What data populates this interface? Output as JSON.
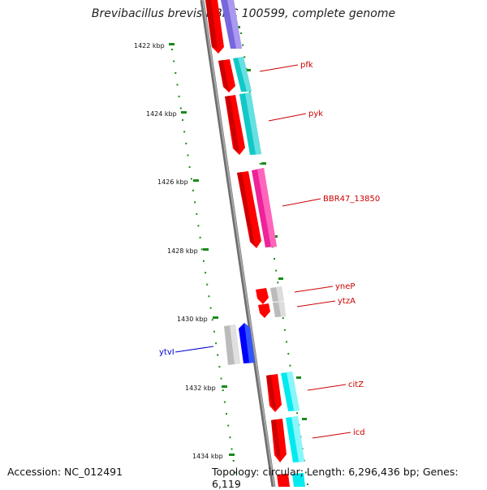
{
  "title": "Brevibacillus brevis NBRC 100599, complete genome",
  "accession": "Accession: NC_012491",
  "summary": "Topology: circular; Length: 6,296,436 bp; Genes: 6,119",
  "colors": {
    "backbone": "#8a8a8a",
    "ticks": "#1a8a1a",
    "red": "#ff0000",
    "purple": "#7766dd",
    "teal": "#11c8c8",
    "magenta": "#ee2299",
    "gray": "#bbbbbb",
    "blue": "#0000ff",
    "cyan": "#00eaf0",
    "label_red": "#cc0000",
    "label_blue": "#0000cc"
  },
  "scale_labels": [
    "1422 kbp",
    "1424 kbp",
    "1426 kbp",
    "1428 kbp",
    "1430 kbp",
    "1432 kbp",
    "1434 kbp"
  ],
  "gene_labels": {
    "pfk": "pfk",
    "pyk": "pyk",
    "bbr47": "BBR47_13850",
    "ynep": "yneP",
    "ytza": "ytzA",
    "ytvi": "ytvI",
    "citz": "citZ",
    "icd": "icd"
  }
}
